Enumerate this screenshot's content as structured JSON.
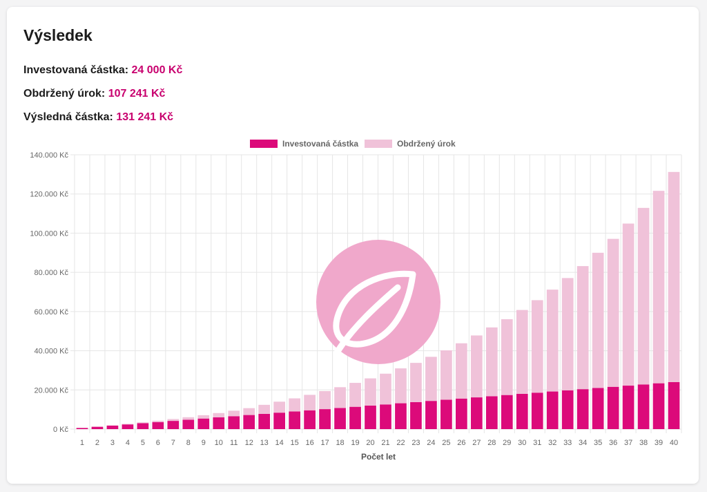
{
  "result": {
    "title": "Výsledek",
    "invested_label": "Investovaná částka:",
    "invested_value": "24 000 Kč",
    "interest_label": "Obdržený úrok:",
    "interest_value": "107 241 Kč",
    "final_label": "Výsledná částka:",
    "final_value": "131 241 Kč"
  },
  "colors": {
    "invested": "#dc0a7a",
    "interest": "#f0c2d9",
    "accent": "#c8006e",
    "grid": "#e5e5e5",
    "watermark": "#f0a8cb"
  },
  "watermark_icon": "leaf-logo",
  "chart_data": {
    "type": "bar",
    "stacked": true,
    "xlabel": "Počet let",
    "ylabel": "",
    "ylim": [
      0,
      140000
    ],
    "yticks": [
      "0 Kč",
      "20.000 Kč",
      "40.000 Kč",
      "60.000 Kč",
      "80.000 Kč",
      "100.000 Kč",
      "120.000 Kč",
      "140.000 Kč"
    ],
    "grid": true,
    "legend_position": "top-center",
    "categories": [
      "1",
      "2",
      "3",
      "4",
      "5",
      "6",
      "7",
      "8",
      "9",
      "10",
      "11",
      "12",
      "13",
      "14",
      "15",
      "16",
      "17",
      "18",
      "19",
      "20",
      "21",
      "22",
      "23",
      "24",
      "25",
      "26",
      "27",
      "28",
      "29",
      "30",
      "31",
      "32",
      "33",
      "34",
      "35",
      "36",
      "37",
      "38",
      "39",
      "40"
    ],
    "series": [
      {
        "name": "Investovaná částka",
        "values": [
          600,
          1200,
          1800,
          2400,
          3000,
          3600,
          4200,
          4800,
          5400,
          6000,
          6600,
          7200,
          7800,
          8400,
          9000,
          9600,
          10200,
          10800,
          11400,
          12000,
          12600,
          13200,
          13800,
          14400,
          15000,
          15600,
          16200,
          16800,
          17400,
          18000,
          18600,
          19200,
          19800,
          20400,
          21000,
          21600,
          22200,
          22800,
          23400,
          24000
        ]
      },
      {
        "name": "Obdržený úrok",
        "values": [
          15,
          70,
          160,
          290,
          460,
          680,
          950,
          1270,
          1700,
          2200,
          2800,
          3500,
          4600,
          5600,
          6700,
          7900,
          9200,
          10600,
          12200,
          13900,
          15700,
          17800,
          20000,
          22500,
          25200,
          28200,
          31600,
          35100,
          38700,
          42800,
          47200,
          52000,
          57300,
          62800,
          69000,
          75500,
          82700,
          90100,
          98200,
          107241
        ]
      }
    ]
  }
}
